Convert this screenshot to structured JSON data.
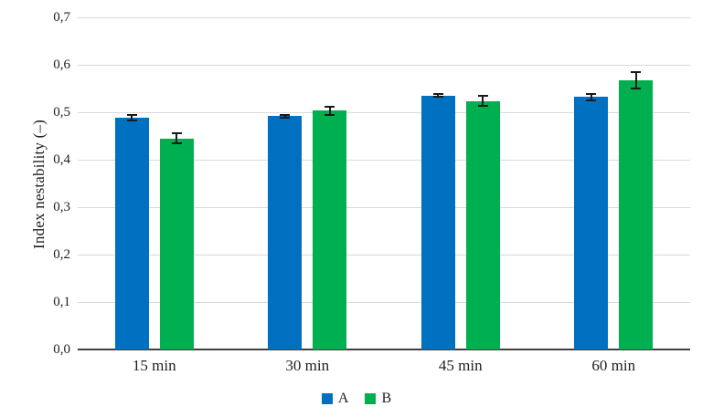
{
  "chart_data": {
    "type": "bar",
    "title": "",
    "xlabel": "",
    "ylabel": "Index nestability (–)",
    "categories": [
      "15 min",
      "30 min",
      "45 min",
      "60 min"
    ],
    "series": [
      {
        "name": "A",
        "color": "#0070C0",
        "values": [
          0.489,
          0.492,
          0.535,
          0.532
        ],
        "errors": [
          0.008,
          0.005,
          0.005,
          0.008
        ]
      },
      {
        "name": "B",
        "color": "#00B050",
        "values": [
          0.445,
          0.503,
          0.524,
          0.568
        ],
        "errors": [
          0.013,
          0.01,
          0.012,
          0.019
        ]
      }
    ],
    "ylim": [
      0.0,
      0.7
    ],
    "ytick_values": [
      0.0,
      0.1,
      0.2,
      0.3,
      0.4,
      0.5,
      0.6,
      0.7
    ],
    "ytick_labels": [
      "0,0",
      "0,1",
      "0,2",
      "0,3",
      "0,4",
      "0,5",
      "0,6",
      "0,7"
    ],
    "decimal_separator": ",",
    "grid": "horizontal",
    "gridline_color": "#d9d9d9",
    "axis_line_color": "#404040",
    "error_bar_color": "#1a1a1a",
    "legend_position": "bottom"
  }
}
